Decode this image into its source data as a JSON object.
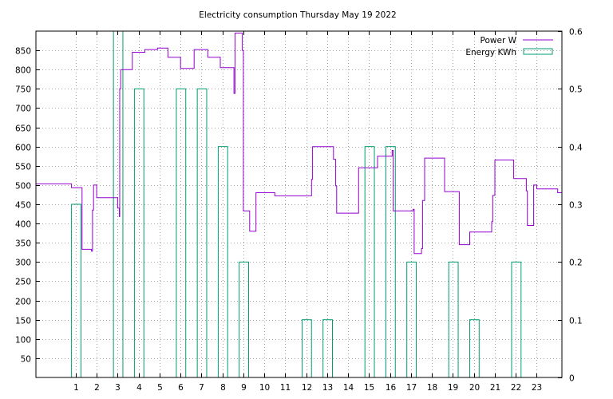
{
  "chart_data": {
    "type": "bar",
    "title": "Electricity consumption Thursday May 19 2022",
    "x": {
      "ticks": [
        1,
        2,
        3,
        4,
        5,
        6,
        7,
        8,
        9,
        10,
        11,
        12,
        13,
        14,
        15,
        16,
        17,
        18,
        19,
        20,
        21,
        22,
        23
      ],
      "range": [
        -0.9,
        24.2
      ]
    },
    "y_left": {
      "ticks": [
        50,
        100,
        150,
        200,
        250,
        300,
        350,
        400,
        450,
        500,
        550,
        600,
        650,
        700,
        750,
        800,
        850
      ],
      "range": [
        0,
        900
      ]
    },
    "y_right": {
      "ticks": [
        0,
        0.1,
        0.2,
        0.3,
        0.4,
        0.5,
        0.6
      ],
      "tick_labels": [
        "0",
        "0.1",
        "0.2",
        "0.3",
        "0.4",
        "0.5",
        "0.6"
      ],
      "range": [
        0,
        0.6
      ]
    },
    "grid": true,
    "legend_position": "top-right",
    "series": [
      {
        "name": "Power W",
        "type": "step-line",
        "axis": "left",
        "color": "#9400d3",
        "points": [
          [
            -0.9,
            503
          ],
          [
            0.8,
            503
          ],
          [
            0.8,
            493
          ],
          [
            1.3,
            493
          ],
          [
            1.3,
            333
          ],
          [
            1.75,
            333
          ],
          [
            1.75,
            328
          ],
          [
            1.8,
            328
          ],
          [
            1.8,
            435
          ],
          [
            1.85,
            435
          ],
          [
            1.85,
            500
          ],
          [
            2.0,
            500
          ],
          [
            2.0,
            467
          ],
          [
            3.0,
            467
          ],
          [
            3.0,
            440
          ],
          [
            3.08,
            440
          ],
          [
            3.08,
            418
          ],
          [
            3.1,
            418
          ],
          [
            3.1,
            750
          ],
          [
            3.15,
            750
          ],
          [
            3.15,
            800
          ],
          [
            3.7,
            800
          ],
          [
            3.7,
            845
          ],
          [
            4.3,
            845
          ],
          [
            4.3,
            852
          ],
          [
            4.9,
            852
          ],
          [
            4.9,
            856
          ],
          [
            5.4,
            856
          ],
          [
            5.4,
            832
          ],
          [
            6.0,
            832
          ],
          [
            6.0,
            803
          ],
          [
            6.65,
            803
          ],
          [
            6.65,
            852
          ],
          [
            7.3,
            852
          ],
          [
            7.3,
            832
          ],
          [
            7.9,
            832
          ],
          [
            7.9,
            805
          ],
          [
            8.55,
            805
          ],
          [
            8.55,
            738
          ],
          [
            8.6,
            738
          ],
          [
            8.6,
            895
          ],
          [
            8.95,
            895
          ],
          [
            8.95,
            850
          ],
          [
            9.0,
            850
          ],
          [
            9.0,
            433
          ],
          [
            9.3,
            433
          ],
          [
            9.3,
            380
          ],
          [
            9.6,
            380
          ],
          [
            9.6,
            480
          ],
          [
            10.5,
            480
          ],
          [
            10.5,
            472
          ],
          [
            12.25,
            472
          ],
          [
            12.25,
            515
          ],
          [
            12.3,
            515
          ],
          [
            12.3,
            600
          ],
          [
            13.3,
            600
          ],
          [
            13.3,
            567
          ],
          [
            13.4,
            567
          ],
          [
            13.4,
            498
          ],
          [
            13.45,
            498
          ],
          [
            13.45,
            427
          ],
          [
            14.5,
            427
          ],
          [
            14.5,
            545
          ],
          [
            15.4,
            545
          ],
          [
            15.4,
            575
          ],
          [
            16.1,
            575
          ],
          [
            16.1,
            590
          ],
          [
            16.15,
            590
          ],
          [
            16.15,
            433
          ],
          [
            17.1,
            433
          ],
          [
            17.1,
            437
          ],
          [
            17.15,
            437
          ],
          [
            17.15,
            322
          ],
          [
            17.5,
            322
          ],
          [
            17.5,
            335
          ],
          [
            17.55,
            335
          ],
          [
            17.55,
            460
          ],
          [
            17.65,
            460
          ],
          [
            17.65,
            570
          ],
          [
            18.6,
            570
          ],
          [
            18.6,
            483
          ],
          [
            19.3,
            483
          ],
          [
            19.3,
            345
          ],
          [
            19.8,
            345
          ],
          [
            19.8,
            378
          ],
          [
            20.85,
            378
          ],
          [
            20.85,
            405
          ],
          [
            20.9,
            405
          ],
          [
            20.9,
            473
          ],
          [
            21.0,
            473
          ],
          [
            21.0,
            565
          ],
          [
            21.9,
            565
          ],
          [
            21.9,
            517
          ],
          [
            22.5,
            517
          ],
          [
            22.5,
            485
          ],
          [
            22.55,
            485
          ],
          [
            22.55,
            395
          ],
          [
            22.85,
            395
          ],
          [
            22.85,
            500
          ],
          [
            23.0,
            500
          ],
          [
            23.0,
            490
          ],
          [
            24.0,
            490
          ],
          [
            24.0,
            480
          ],
          [
            24.2,
            480
          ]
        ]
      },
      {
        "name": "Energy KWh",
        "type": "bar",
        "axis": "right",
        "color": "#009e73",
        "hours": [
          0,
          1,
          2,
          3,
          4,
          5,
          6,
          7,
          8,
          9,
          10,
          11,
          12,
          13,
          14,
          15,
          16,
          17,
          18,
          19,
          20,
          21,
          22,
          23
        ],
        "values": [
          0,
          0.3,
          0,
          0.6,
          0.5,
          0,
          0.5,
          0.5,
          0.4,
          0.2,
          0,
          0,
          0.1,
          0.1,
          0,
          0.4,
          0.4,
          0.2,
          0,
          0.2,
          0.1,
          0,
          0.2,
          0
        ]
      }
    ]
  }
}
